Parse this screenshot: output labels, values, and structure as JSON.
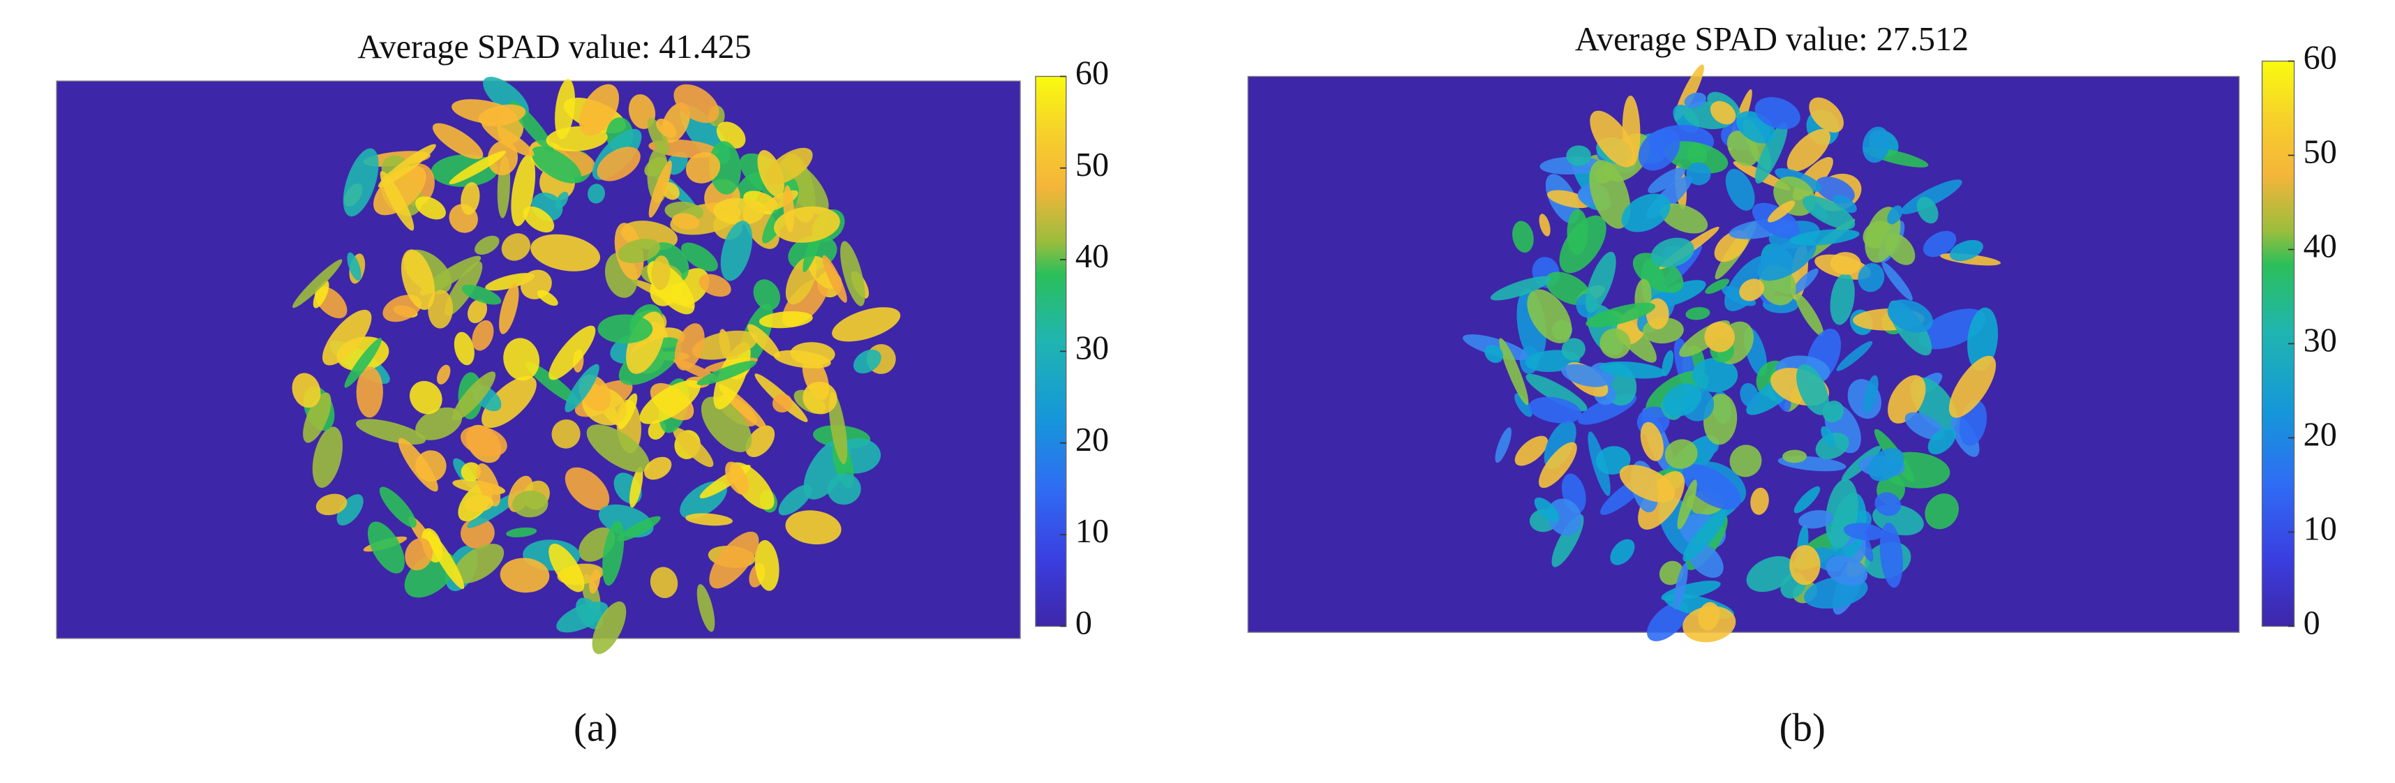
{
  "chart_data": [
    {
      "type": "heatmap",
      "title": "Average SPAD value: 41.425",
      "caption": "(a)",
      "clim": [
        0,
        60
      ],
      "cticks": [
        0,
        10,
        20,
        30,
        40,
        50,
        60
      ]
    },
    {
      "type": "heatmap",
      "title": "Average SPAD value: 27.512",
      "caption": "(b)",
      "clim": [
        0,
        60
      ],
      "cticks": [
        0,
        10,
        20,
        30,
        40,
        50,
        60
      ]
    }
  ]
}
